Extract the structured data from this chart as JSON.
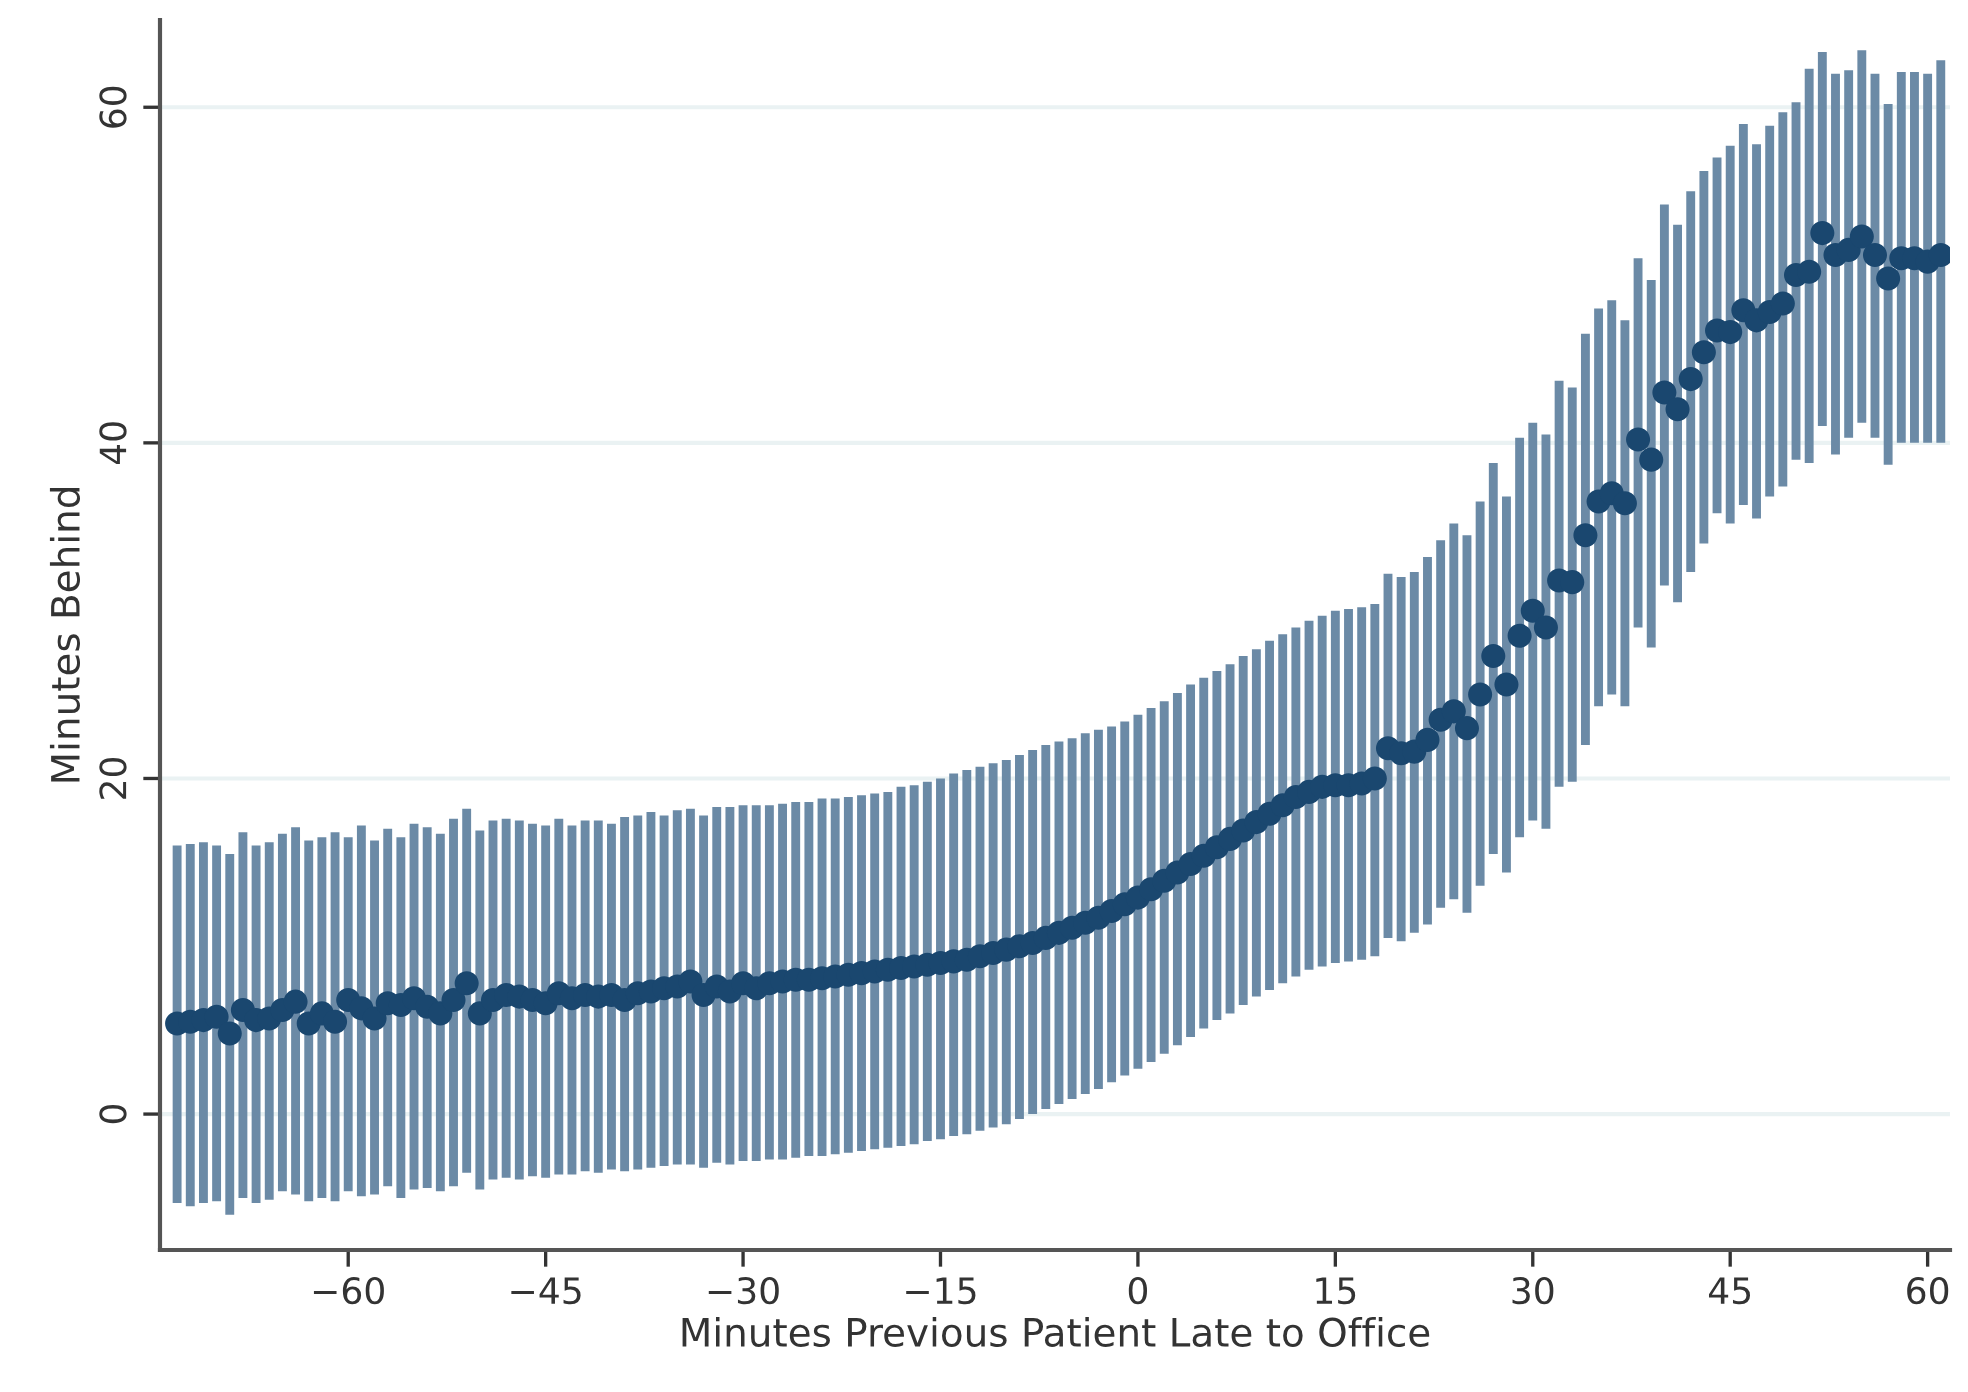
{
  "chart_data": {
    "type": "scatter",
    "xlabel": "Minutes Previous Patient Late to Office",
    "ylabel": "Minutes Behind",
    "xlim": [
      -74.3,
      61.7
    ],
    "ylim": [
      -8.1,
      65.2
    ],
    "xticks": [
      {
        "value": -60,
        "label": "−60"
      },
      {
        "value": -45,
        "label": "−45"
      },
      {
        "value": -30,
        "label": "−30"
      },
      {
        "value": -15,
        "label": "−15"
      },
      0,
      15,
      30,
      45,
      60
    ],
    "yticks": [
      0,
      20,
      40,
      60
    ],
    "grid": "y",
    "marker": "circle",
    "series": [
      {
        "color": "#1a476f",
        "x": [
          -73,
          -72,
          -71,
          -70,
          -69,
          -68,
          -67,
          -66,
          -65,
          -64,
          -63,
          -62,
          -61,
          -60,
          -59,
          -58,
          -57,
          -56,
          -55,
          -54,
          -53,
          -52,
          -51,
          -50,
          -49,
          -48,
          -47,
          -46,
          -45,
          -44,
          -43,
          -42,
          -41,
          -40,
          -39,
          -38,
          -37,
          -36,
          -35,
          -34,
          -33,
          -32,
          -31,
          -30,
          -29,
          -28,
          -27,
          -26,
          -25,
          -24,
          -23,
          -22,
          -21,
          -20,
          -19,
          -18,
          -17,
          -16,
          -15,
          -14,
          -13,
          -12,
          -11,
          -10,
          -9,
          -8,
          -7,
          -6,
          -5,
          -4,
          -3,
          -2,
          -1,
          0,
          1,
          2,
          3,
          4,
          5,
          6,
          7,
          8,
          9,
          10,
          11,
          12,
          13,
          14,
          15,
          16,
          17,
          18,
          19,
          20,
          21,
          22,
          23,
          24,
          25,
          26,
          27,
          28,
          29,
          30,
          31,
          32,
          33,
          34,
          35,
          36,
          37,
          38,
          39,
          40,
          41,
          42,
          43,
          44,
          45,
          46,
          47,
          48,
          49,
          50,
          51,
          52,
          53,
          54,
          55,
          56,
          57,
          58,
          59,
          60,
          61
        ],
        "values": [
          5.4,
          5.5,
          5.6,
          5.8,
          4.8,
          6.2,
          5.6,
          5.7,
          6.2,
          6.7,
          5.4,
          6.0,
          5.5,
          6.8,
          6.3,
          5.7,
          6.6,
          6.5,
          6.9,
          6.4,
          6.0,
          6.8,
          7.8,
          6.0,
          6.8,
          7.1,
          7.0,
          6.8,
          6.6,
          7.2,
          6.9,
          7.1,
          7.0,
          7.1,
          6.8,
          7.2,
          7.3,
          7.5,
          7.6,
          7.9,
          7.1,
          7.6,
          7.3,
          7.8,
          7.5,
          7.8,
          7.9,
          8.0,
          8.0,
          8.1,
          8.2,
          8.3,
          8.4,
          8.5,
          8.6,
          8.7,
          8.8,
          8.9,
          9.0,
          9.1,
          9.2,
          9.4,
          9.6,
          9.8,
          10.0,
          10.2,
          10.5,
          10.8,
          11.1,
          11.4,
          11.7,
          12.1,
          12.5,
          12.9,
          13.4,
          13.9,
          14.4,
          14.9,
          15.4,
          15.9,
          16.4,
          16.9,
          17.4,
          17.9,
          18.4,
          18.9,
          19.2,
          19.5,
          19.6,
          19.6,
          19.7,
          20.0,
          21.8,
          21.5,
          21.6,
          22.3,
          23.5,
          24.0,
          23.0,
          25.0,
          27.3,
          25.6,
          28.5,
          30.0,
          29.0,
          31.8,
          31.7,
          34.5,
          36.5,
          37.0,
          36.4,
          40.2,
          39.0,
          43.0,
          42.0,
          43.8,
          45.4,
          46.7,
          46.6,
          47.9,
          47.3,
          47.8,
          48.3,
          50.0,
          50.2,
          52.5,
          51.2,
          51.5,
          52.3,
          51.2,
          49.8,
          51.0,
          51.0,
          50.8,
          51.2
        ],
        "errors": [
          [
            -5.3,
            16.0
          ],
          [
            -5.5,
            16.1
          ],
          [
            -5.3,
            16.2
          ],
          [
            -5.2,
            16.0
          ],
          [
            -6.0,
            15.5
          ],
          [
            -5.0,
            16.8
          ],
          [
            -5.3,
            16.0
          ],
          [
            -5.1,
            16.2
          ],
          [
            -4.6,
            16.7
          ],
          [
            -4.8,
            17.1
          ],
          [
            -5.2,
            16.3
          ],
          [
            -5.0,
            16.5
          ],
          [
            -5.2,
            16.8
          ],
          [
            -4.6,
            16.5
          ],
          [
            -4.9,
            17.2
          ],
          [
            -4.8,
            16.3
          ],
          [
            -4.3,
            17.0
          ],
          [
            -5.0,
            16.5
          ],
          [
            -4.5,
            17.3
          ],
          [
            -4.4,
            17.1
          ],
          [
            -4.6,
            16.7
          ],
          [
            -4.3,
            17.6
          ],
          [
            -3.5,
            18.2
          ],
          [
            -4.5,
            16.9
          ],
          [
            -3.9,
            17.5
          ],
          [
            -3.8,
            17.6
          ],
          [
            -3.9,
            17.5
          ],
          [
            -3.7,
            17.3
          ],
          [
            -3.8,
            17.2
          ],
          [
            -3.6,
            17.6
          ],
          [
            -3.6,
            17.2
          ],
          [
            -3.4,
            17.5
          ],
          [
            -3.5,
            17.5
          ],
          [
            -3.3,
            17.3
          ],
          [
            -3.4,
            17.7
          ],
          [
            -3.3,
            17.8
          ],
          [
            -3.2,
            18.0
          ],
          [
            -3.1,
            17.8
          ],
          [
            -3.0,
            18.1
          ],
          [
            -3.0,
            18.2
          ],
          [
            -3.2,
            17.8
          ],
          [
            -2.9,
            18.3
          ],
          [
            -3.0,
            18.3
          ],
          [
            -2.8,
            18.4
          ],
          [
            -2.8,
            18.4
          ],
          [
            -2.7,
            18.4
          ],
          [
            -2.7,
            18.5
          ],
          [
            -2.6,
            18.6
          ],
          [
            -2.5,
            18.6
          ],
          [
            -2.5,
            18.8
          ],
          [
            -2.4,
            18.8
          ],
          [
            -2.3,
            18.9
          ],
          [
            -2.2,
            19.0
          ],
          [
            -2.1,
            19.1
          ],
          [
            -2.0,
            19.2
          ],
          [
            -1.9,
            19.5
          ],
          [
            -1.8,
            19.6
          ],
          [
            -1.6,
            19.8
          ],
          [
            -1.5,
            20.0
          ],
          [
            -1.3,
            20.3
          ],
          [
            -1.2,
            20.5
          ],
          [
            -1.0,
            20.7
          ],
          [
            -0.8,
            20.9
          ],
          [
            -0.6,
            21.1
          ],
          [
            -0.3,
            21.4
          ],
          [
            0.0,
            21.7
          ],
          [
            0.3,
            22.0
          ],
          [
            0.6,
            22.2
          ],
          [
            0.9,
            22.4
          ],
          [
            1.2,
            22.7
          ],
          [
            1.5,
            22.9
          ],
          [
            1.9,
            23.1
          ],
          [
            2.3,
            23.4
          ],
          [
            2.7,
            23.8
          ],
          [
            3.1,
            24.2
          ],
          [
            3.6,
            24.6
          ],
          [
            4.1,
            25.1
          ],
          [
            4.6,
            25.6
          ],
          [
            5.1,
            26.0
          ],
          [
            5.6,
            26.4
          ],
          [
            6.0,
            26.8
          ],
          [
            6.5,
            27.3
          ],
          [
            7.0,
            27.7
          ],
          [
            7.4,
            28.2
          ],
          [
            7.8,
            28.6
          ],
          [
            8.2,
            29.0
          ],
          [
            8.6,
            29.4
          ],
          [
            8.8,
            29.7
          ],
          [
            9.0,
            30.0
          ],
          [
            9.1,
            30.1
          ],
          [
            9.2,
            30.2
          ],
          [
            9.4,
            30.4
          ],
          [
            10.5,
            32.2
          ],
          [
            10.3,
            32.0
          ],
          [
            10.8,
            32.3
          ],
          [
            11.3,
            33.2
          ],
          [
            12.3,
            34.2
          ],
          [
            12.8,
            35.2
          ],
          [
            12.0,
            34.5
          ],
          [
            13.6,
            36.5
          ],
          [
            15.5,
            38.8
          ],
          [
            14.4,
            36.8
          ],
          [
            16.5,
            40.3
          ],
          [
            17.5,
            41.2
          ],
          [
            17.0,
            40.5
          ],
          [
            19.5,
            43.7
          ],
          [
            19.8,
            43.3
          ],
          [
            22.0,
            46.5
          ],
          [
            24.3,
            48.0
          ],
          [
            25.0,
            48.5
          ],
          [
            24.3,
            47.3
          ],
          [
            29.0,
            51.0
          ],
          [
            27.8,
            49.7
          ],
          [
            31.5,
            54.2
          ],
          [
            30.5,
            53.0
          ],
          [
            32.3,
            55.0
          ],
          [
            34.0,
            56.2
          ],
          [
            35.8,
            57.0
          ],
          [
            35.2,
            57.7
          ],
          [
            36.3,
            59.0
          ],
          [
            35.5,
            57.8
          ],
          [
            36.8,
            58.9
          ],
          [
            37.4,
            59.7
          ],
          [
            39.0,
            60.3
          ],
          [
            38.8,
            62.3
          ],
          [
            41.0,
            63.3
          ],
          [
            39.3,
            62.0
          ],
          [
            40.3,
            62.2
          ],
          [
            41.2,
            63.4
          ],
          [
            40.3,
            62.0
          ],
          [
            38.7,
            60.2
          ],
          [
            40.0,
            62.1
          ],
          [
            40.0,
            62.1
          ],
          [
            40.0,
            62.0
          ],
          [
            40.0,
            62.8
          ]
        ]
      }
    ]
  }
}
